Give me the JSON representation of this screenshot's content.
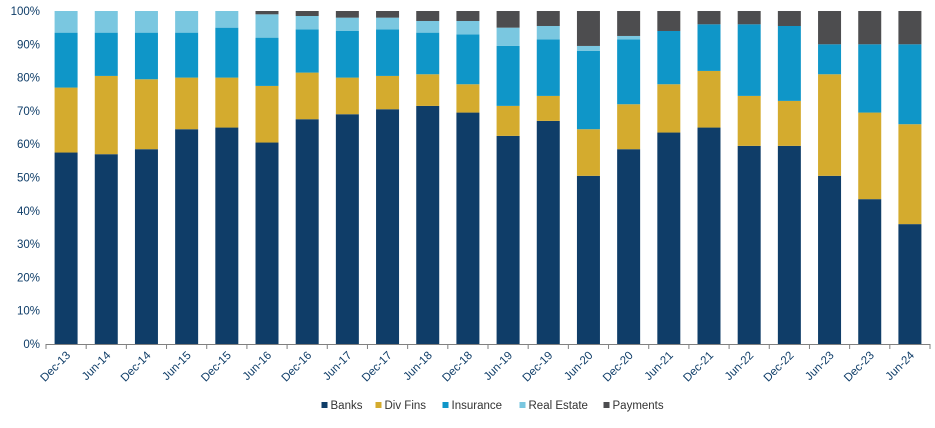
{
  "chart_data": {
    "type": "bar",
    "stacked": true,
    "categories": [
      "Dec-13",
      "Jun-14",
      "Dec-14",
      "Jun-15",
      "Dec-15",
      "Jun-16",
      "Dec-16",
      "Jun-17",
      "Dec-17",
      "Jun-18",
      "Dec-18",
      "Jun-19",
      "Dec-19",
      "Jun-20",
      "Dec-20",
      "Jun-21",
      "Dec-21",
      "Jun-22",
      "Dec-22",
      "Jun-23",
      "Dec-23",
      "Jun-24"
    ],
    "series": [
      {
        "name": "Banks",
        "color": "#0f3d68",
        "values": [
          57.5,
          57,
          58.5,
          64.5,
          65,
          60.5,
          67.5,
          69,
          70.5,
          71.5,
          69.5,
          62.5,
          67,
          50.5,
          58.5,
          63.5,
          65,
          59.5,
          59.5,
          50.5,
          43.5,
          36
        ]
      },
      {
        "name": "Div Fins",
        "color": "#d4ab2e",
        "values": [
          19.5,
          23.5,
          21,
          15.5,
          15,
          17,
          14,
          11,
          10,
          9.5,
          8.5,
          9,
          7.5,
          14,
          13.5,
          14.5,
          17,
          15,
          13.5,
          30.5,
          26,
          30
        ]
      },
      {
        "name": "Insurance",
        "color": "#0f96c8",
        "values": [
          16.5,
          13,
          14,
          13.5,
          15,
          14.5,
          13,
          14,
          14,
          12.5,
          15,
          18,
          17,
          23.5,
          19.5,
          16,
          14,
          21.5,
          22.5,
          9,
          20.5,
          24
        ]
      },
      {
        "name": "Real Estate",
        "color": "#7ac7e0",
        "values": [
          6.5,
          6.5,
          6.5,
          6.5,
          5,
          7,
          4,
          4,
          3.5,
          3.5,
          4,
          5.5,
          4,
          1.5,
          1,
          0,
          0,
          0,
          0,
          0,
          0,
          0
        ]
      },
      {
        "name": "Payments",
        "color": "#4d4d4f",
        "values": [
          0,
          0,
          0,
          0,
          0,
          1,
          1.5,
          2,
          2,
          3,
          3,
          5,
          4.5,
          10.5,
          7.5,
          6,
          4,
          4,
          4.5,
          10,
          10,
          10
        ]
      }
    ],
    "ylim": [
      0,
      100
    ],
    "yticks": [
      "0%",
      "10%",
      "20%",
      "30%",
      "40%",
      "50%",
      "60%",
      "70%",
      "80%",
      "90%",
      "100%"
    ],
    "title": "",
    "xlabel": "",
    "ylabel": "",
    "legend_position": "bottom-center",
    "grid": false,
    "axis_color": "#808080",
    "label_color": "#0f3d68"
  }
}
